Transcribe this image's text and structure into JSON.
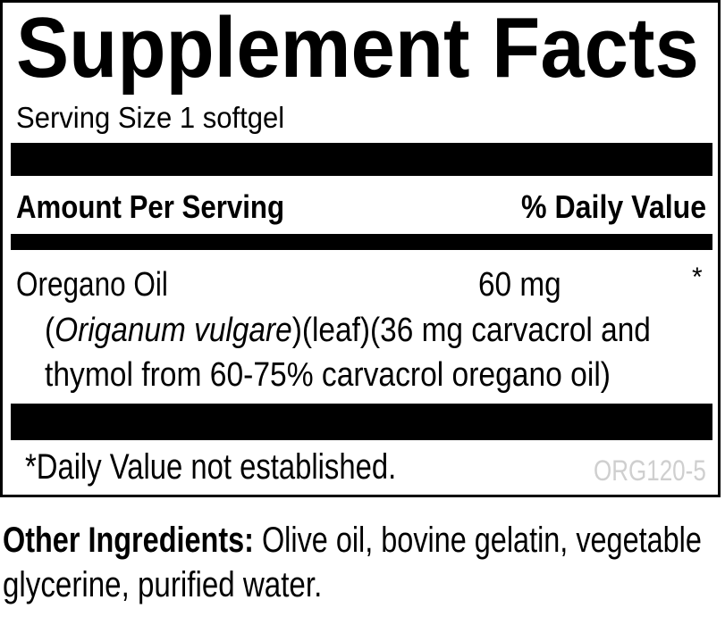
{
  "label": {
    "title": "Supplement Facts",
    "serving_size": "Serving Size 1 softgel",
    "header_left": "Amount Per Serving",
    "header_right": "% Daily Value",
    "ingredient": {
      "name": "Oregano Oil",
      "amount": "60 mg",
      "daily_value": "*",
      "description_line1_open": "(",
      "description_latin": "Origanum vulgare",
      "description_line1_rest": ")(leaf)(36 mg carvacrol and",
      "description_line2": "thymol from 60-75% carvacrol oregano oil)"
    },
    "footnote": "*Daily Value not established.",
    "code": "ORG120-5",
    "code_color": "#cfcfcf"
  },
  "other_ingredients": {
    "heading": "Other Ingredients:",
    "line1_rest": " Olive oil, bovine gelatin, vegetable",
    "line2": "glycerine, purified water."
  }
}
